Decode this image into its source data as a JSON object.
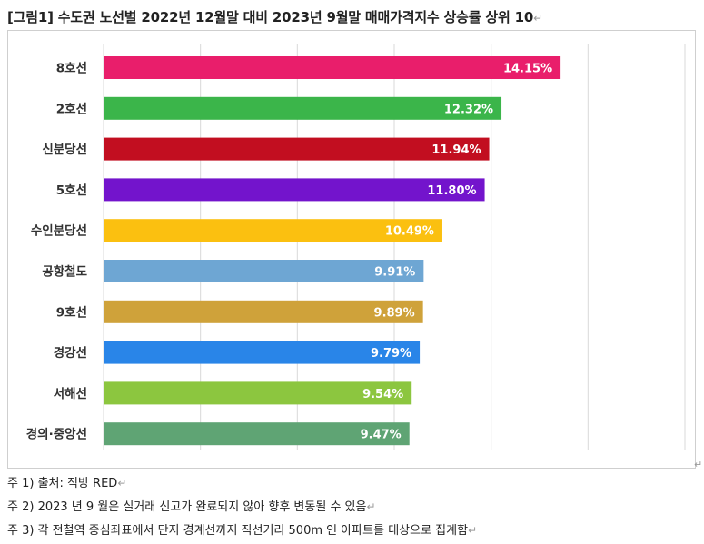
{
  "title": "[그림1] 수도권 노선별 2022년 12월말 대비 2023년 9월말 매매가격지수 상승률 상위 10",
  "paragraph_mark": "↵",
  "chart_data": {
    "type": "bar",
    "orientation": "horizontal",
    "categories": [
      "8호선",
      "2호선",
      "신분당선",
      "5호선",
      "수인분당선",
      "공항철도",
      "9호선",
      "경강선",
      "서해선",
      "경의·중앙선"
    ],
    "values": [
      14.15,
      12.32,
      11.94,
      11.8,
      10.49,
      9.91,
      9.89,
      9.79,
      9.54,
      9.47
    ],
    "value_labels": [
      "14.15%",
      "12.32%",
      "11.94%",
      "11.80%",
      "10.49%",
      "9.91%",
      "9.89%",
      "9.79%",
      "9.54%",
      "9.47%"
    ],
    "colors": [
      "#e91e6b",
      "#3bb54a",
      "#c20e20",
      "#7314cc",
      "#fbc010",
      "#6ea6d3",
      "#cfa23a",
      "#2985e8",
      "#8cc63f",
      "#5fa474"
    ],
    "xlim": [
      0,
      18
    ],
    "grid_step": 3,
    "grid": true,
    "legend": "none"
  },
  "notes": [
    "주 1) 출처: 직방 RED",
    "주 2) 2023 년 9 월은 실거래 신고가 완료되지 않아 향후 변동될 수 있음",
    "주 3) 각 전철역 중심좌표에서 단지 경계선까지 직선거리 500m 인 아파트를 대상으로 집계함"
  ]
}
